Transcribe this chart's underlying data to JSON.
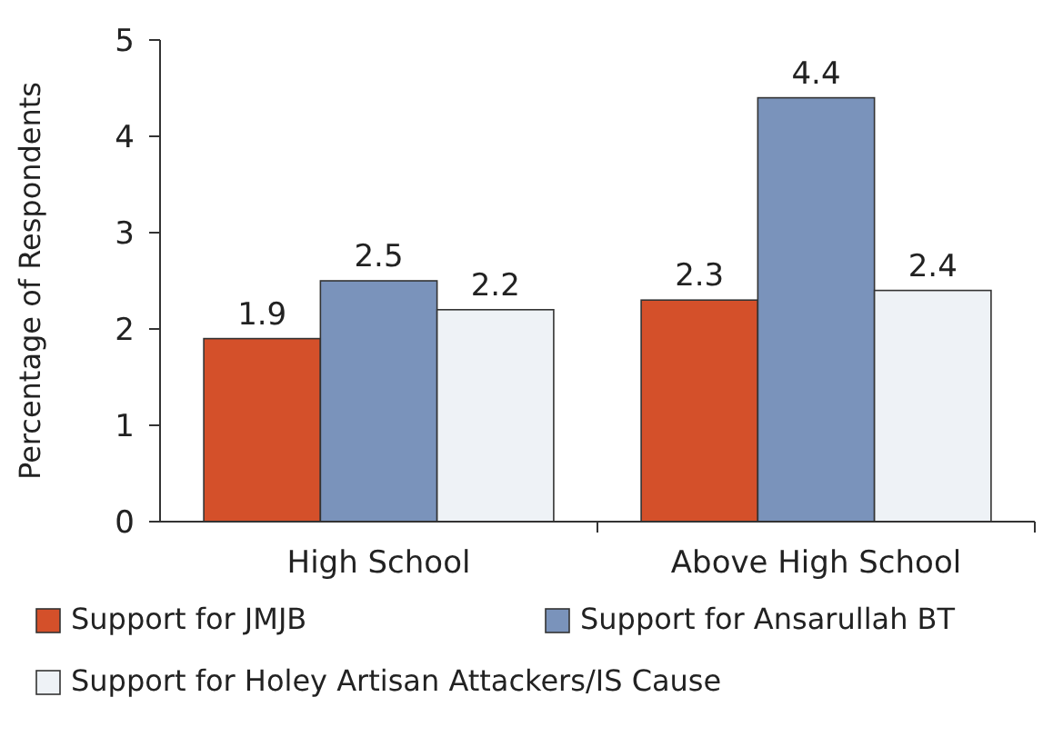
{
  "chart_data": {
    "type": "bar",
    "ylabel": "Percentage of Respondents",
    "categories": [
      "High School",
      "Above High School"
    ],
    "series": [
      {
        "name": "Support for JMJB",
        "color": "#d4502a",
        "values": [
          1.9,
          2.3
        ]
      },
      {
        "name": "Support for Ansarullah BT",
        "color": "#7a93bb",
        "values": [
          2.5,
          4.4
        ]
      },
      {
        "name": "Support for Holey Artisan Attackers/IS Cause",
        "color": "#eef2f6",
        "values": [
          2.2,
          2.4
        ]
      }
    ],
    "ylim": [
      0,
      5
    ],
    "yticks": [
      0,
      1,
      2,
      3,
      4,
      5
    ],
    "data_labels": true,
    "legend": "bottom",
    "grid": false
  }
}
